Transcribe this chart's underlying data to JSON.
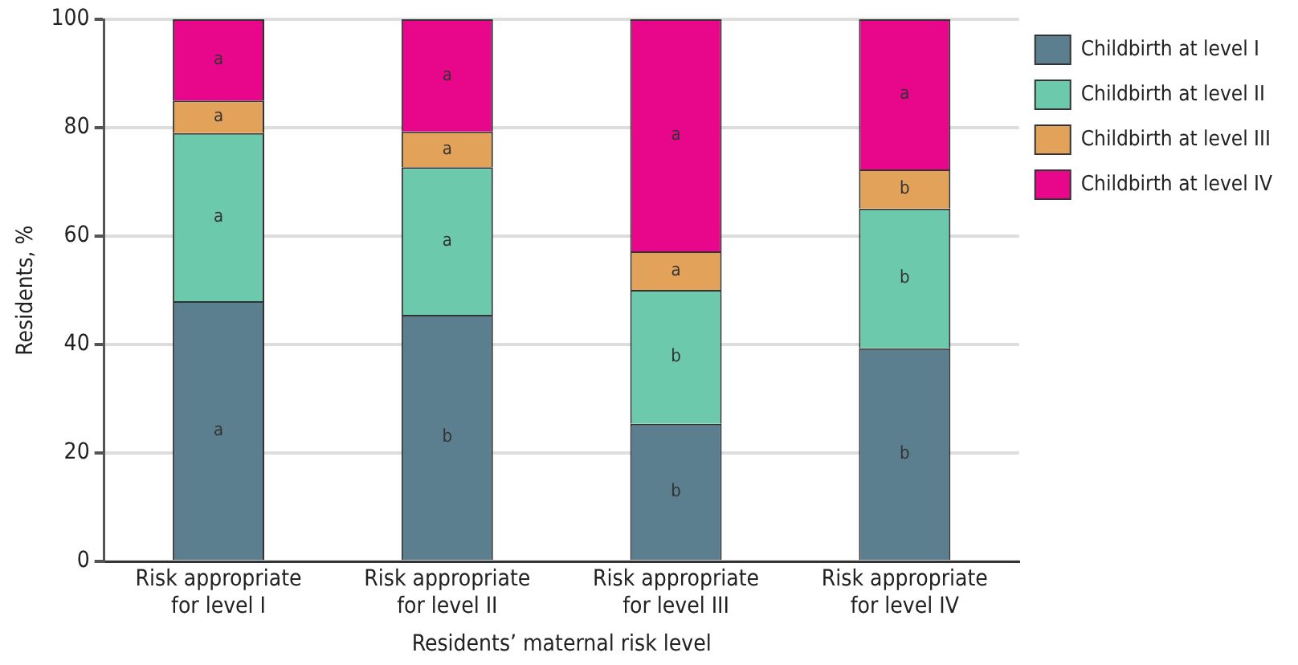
{
  "chart_data": {
    "type": "bar",
    "stacked": true,
    "xlabel": "Residents’ maternal risk level",
    "ylabel": "Residents, %",
    "categories": [
      "Risk appropriate\nfor level I",
      "Risk appropriate\nfor level II",
      "Risk appropriate\nfor level III",
      "Risk appropriate\nfor level IV"
    ],
    "series": [
      {
        "name": "Childbirth at level I",
        "color": "#5b7f8f",
        "values": [
          48.0,
          45.5,
          25.4,
          39.3
        ],
        "value_labels": [
          "a",
          "b",
          "b",
          "b"
        ]
      },
      {
        "name": "Childbirth at level II",
        "color": "#6dc9ab",
        "values": [
          31.0,
          27.2,
          24.7,
          25.8
        ],
        "value_labels": [
          "a",
          "a",
          "b",
          "b"
        ]
      },
      {
        "name": "Childbirth at level III",
        "color": "#e3a25a",
        "values": [
          6.0,
          6.6,
          7.1,
          7.2
        ],
        "value_labels": [
          "a",
          "a",
          "a",
          "b"
        ]
      },
      {
        "name": "Childbirth at level IV",
        "color": "#e8078a",
        "values": [
          15.0,
          20.7,
          42.8,
          27.7
        ],
        "value_labels": [
          "a",
          "a",
          "a",
          "a"
        ]
      }
    ],
    "ylim": [
      0,
      100
    ],
    "yticks": [
      0,
      20,
      40,
      60,
      80,
      100
    ],
    "grid": "y",
    "legend": "top right"
  }
}
